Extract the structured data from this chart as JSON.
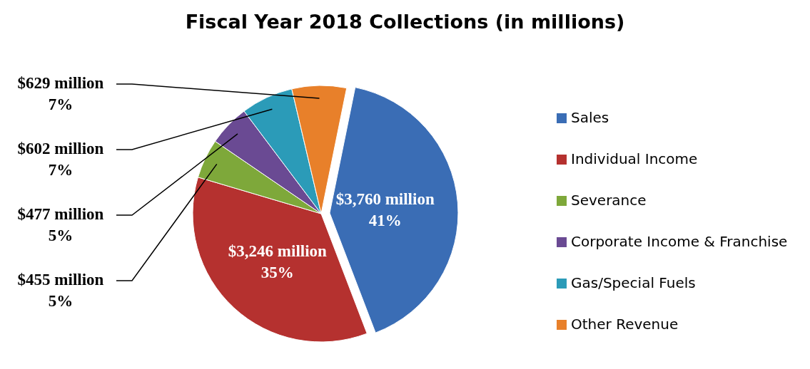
{
  "chart_data": {
    "type": "pie",
    "title": "Fiscal Year 2018 Collections (in millions)",
    "categories": [
      "Sales",
      "Individual Income",
      "Severance",
      "Corporate Income & Franchise",
      "Gas/Special Fuels",
      "Other Revenue"
    ],
    "values": [
      3760,
      3246,
      455,
      477,
      602,
      629
    ],
    "colors": [
      "#3a6db5",
      "#b5312f",
      "#7ea83a",
      "#6a4a93",
      "#2b9bb8",
      "#e8802a"
    ],
    "value_labels": [
      "$3,760 million",
      "$3,246 million",
      "$455 million",
      "$477 million",
      "$602 million",
      "$629 million"
    ],
    "annotations": [
      "41%",
      "35%",
      "5%",
      "5%",
      "7%",
      "7%"
    ],
    "legend": "right"
  }
}
